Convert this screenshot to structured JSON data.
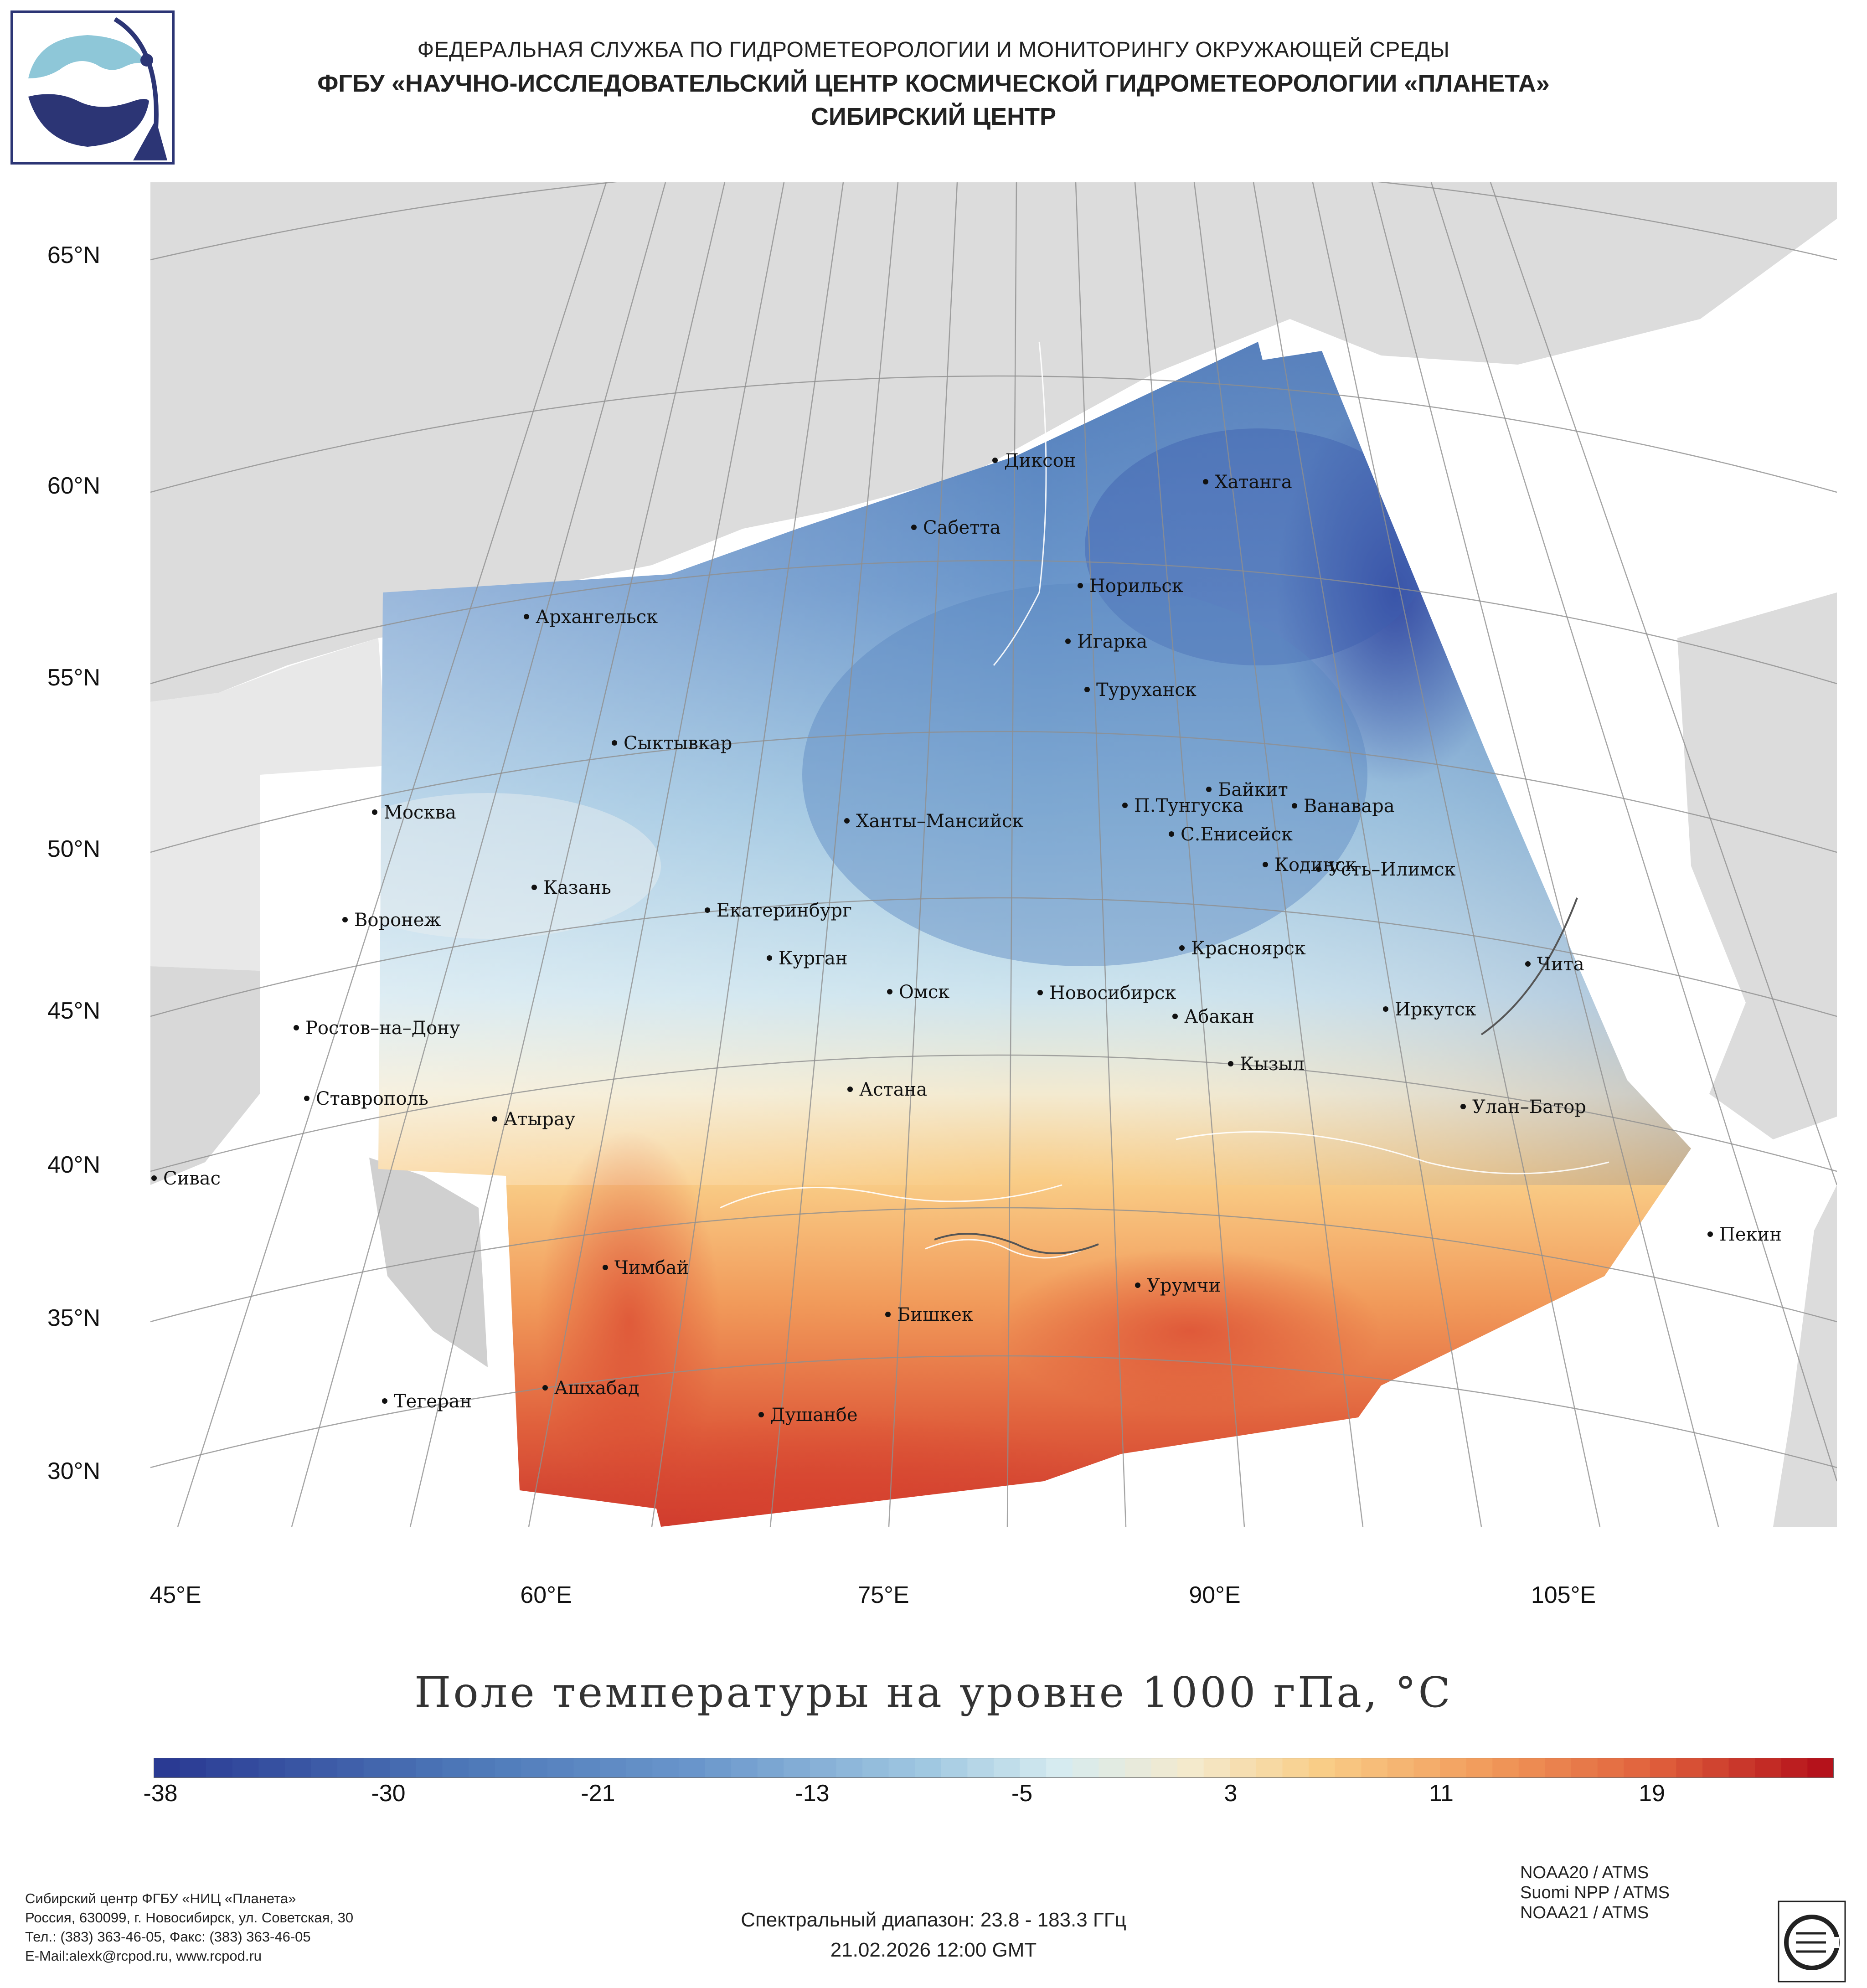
{
  "header": {
    "line1": "ФЕДЕРАЛЬНАЯ СЛУЖБА ПО ГИДРОМЕТЕОРОЛОГИИ И МОНИТОРИНГУ ОКРУЖАЮЩЕЙ СРЕДЫ",
    "line2": "ФГБУ «НАУЧНО-ИССЛЕДОВАТЕЛЬСКИЙ ЦЕНТР КОСМИЧЕСКОЙ ГИДРОМЕТЕОРОЛОГИИ «ПЛАНЕТА»",
    "line3": "СИБИРСКИЙ ЦЕНТР"
  },
  "map": {
    "lat_labels": [
      "65°N",
      "60°N",
      "55°N",
      "50°N",
      "45°N",
      "40°N",
      "35°N",
      "30°N"
    ],
    "lon_labels": [
      "45°E",
      "60°E",
      "75°E",
      "90°E",
      "105°E"
    ],
    "cities": [
      {
        "name": "Диксон"
      },
      {
        "name": "Хатанга"
      },
      {
        "name": "Сабетта"
      },
      {
        "name": "Норильск"
      },
      {
        "name": "Архангельск"
      },
      {
        "name": "Игарка"
      },
      {
        "name": "Туруханск"
      },
      {
        "name": "Сыктывкар"
      },
      {
        "name": "Байкит"
      },
      {
        "name": "Москва"
      },
      {
        "name": "П.Тунгуска"
      },
      {
        "name": "Ванавара"
      },
      {
        "name": "Ханты–Мансийск"
      },
      {
        "name": "С.Енисейск"
      },
      {
        "name": "Казань"
      },
      {
        "name": "Кодинск"
      },
      {
        "name": "Усть–Илимск"
      },
      {
        "name": "Воронеж"
      },
      {
        "name": "Екатеринбург"
      },
      {
        "name": "Красноярск"
      },
      {
        "name": "Курган"
      },
      {
        "name": "Чита"
      },
      {
        "name": "Омск"
      },
      {
        "name": "Новосибирск"
      },
      {
        "name": "Ростов–на–Дону"
      },
      {
        "name": "Абакан"
      },
      {
        "name": "Иркутск"
      },
      {
        "name": "Кызыл"
      },
      {
        "name": "Ставрополь"
      },
      {
        "name": "Астана"
      },
      {
        "name": "Улан–Батор"
      },
      {
        "name": "Атырау"
      },
      {
        "name": "Сивас"
      },
      {
        "name": "Пекин"
      },
      {
        "name": "Чимбай"
      },
      {
        "name": "Урумчи"
      },
      {
        "name": "Бишкек"
      },
      {
        "name": "Ашхабад"
      },
      {
        "name": "Тегеран"
      },
      {
        "name": "Душанбе"
      }
    ]
  },
  "title": "Поле температуры на уровне 1000 гПа, °C",
  "colorbar": {
    "ticks": [
      "-38",
      "-30",
      "-21",
      "-13",
      "-5",
      "3",
      "11",
      "19"
    ],
    "min_color": "#2a3a93",
    "mid_color": "#e8f4f3",
    "max_color": "#b5121b"
  },
  "footer": {
    "org": "Сибирский центр ФГБУ «НИЦ «Планета»",
    "address": "Россия, 630099, г. Новосибирск, ул. Советская, 30",
    "phone": "Тел.: (383) 363-46-05, Факс: (383) 363-46-05",
    "email": "E-Mail:alexk@rcpod.ru, www.rcpod.ru",
    "spectral": "Спектральный диапазон: 23.8 - 183.3 ГГц",
    "datetime": "21.02.2026 12:00 GMT",
    "satellites": [
      "NOAA20 / ATMS",
      "Suomi NPP / ATMS",
      "NOAA21 / ATMS"
    ]
  }
}
